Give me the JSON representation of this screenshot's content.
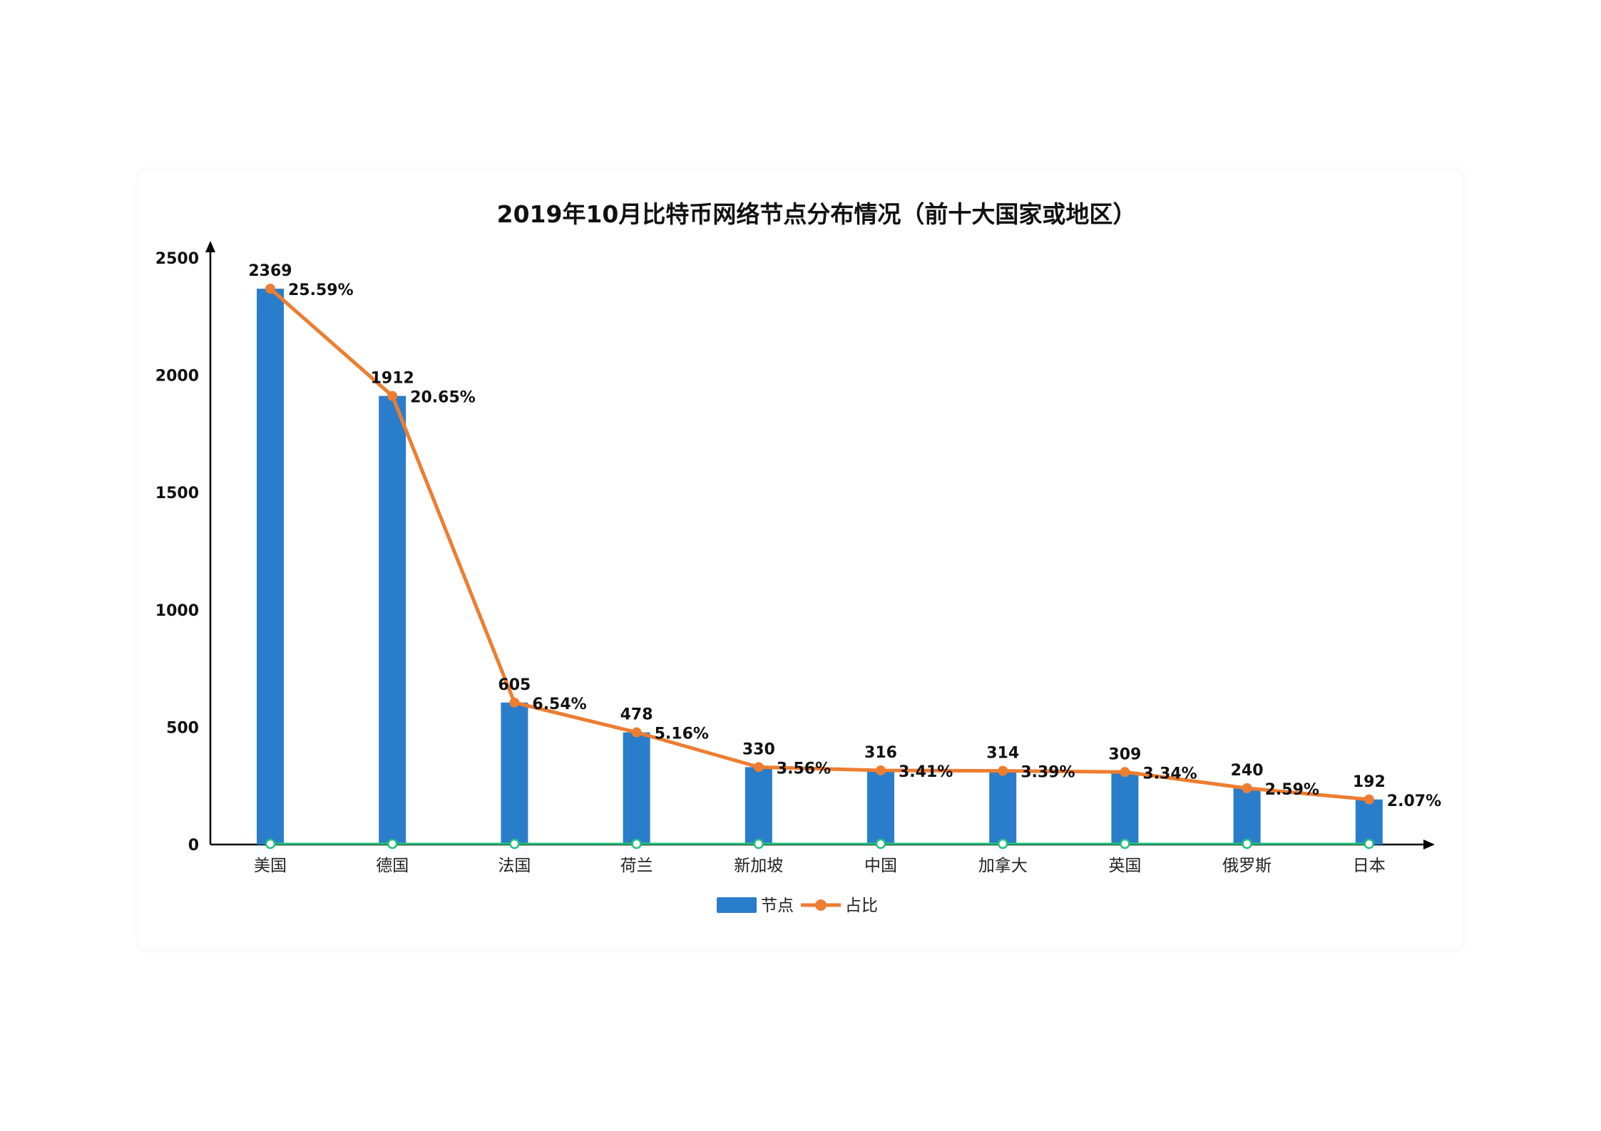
{
  "chart_data": {
    "type": "bar",
    "title": "2019年10月比特币网络节点分布情况（前十大国家或地区）",
    "categories": [
      "美国",
      "德国",
      "法国",
      "荷兰",
      "新加坡",
      "中国",
      "加拿大",
      "英国",
      "俄罗斯",
      "日本"
    ],
    "series": [
      {
        "name": "节点",
        "type": "bar",
        "color": "#2a7dcb",
        "values": [
          2369,
          1912,
          605,
          478,
          330,
          316,
          314,
          309,
          240,
          192
        ],
        "labels": [
          "2369",
          "1912",
          "605",
          "478",
          "330",
          "316",
          "314",
          "309",
          "240",
          "192"
        ]
      },
      {
        "name": "占比",
        "type": "line",
        "color": "#ed7d31",
        "values": [
          25.59,
          20.65,
          6.54,
          5.16,
          3.56,
          3.41,
          3.39,
          3.34,
          2.59,
          2.07
        ],
        "labels": [
          "25.59%",
          "20.65%",
          "6.54%",
          "5.16%",
          "3.56%",
          "3.41%",
          "3.39%",
          "3.34%",
          "2.59%",
          "2.07%"
        ]
      }
    ],
    "y_ticks": [
      "0",
      "500",
      "1000",
      "1500",
      "2000",
      "2500"
    ],
    "ylim": [
      0,
      2500
    ],
    "legend": "bottom-center",
    "grid": false
  }
}
